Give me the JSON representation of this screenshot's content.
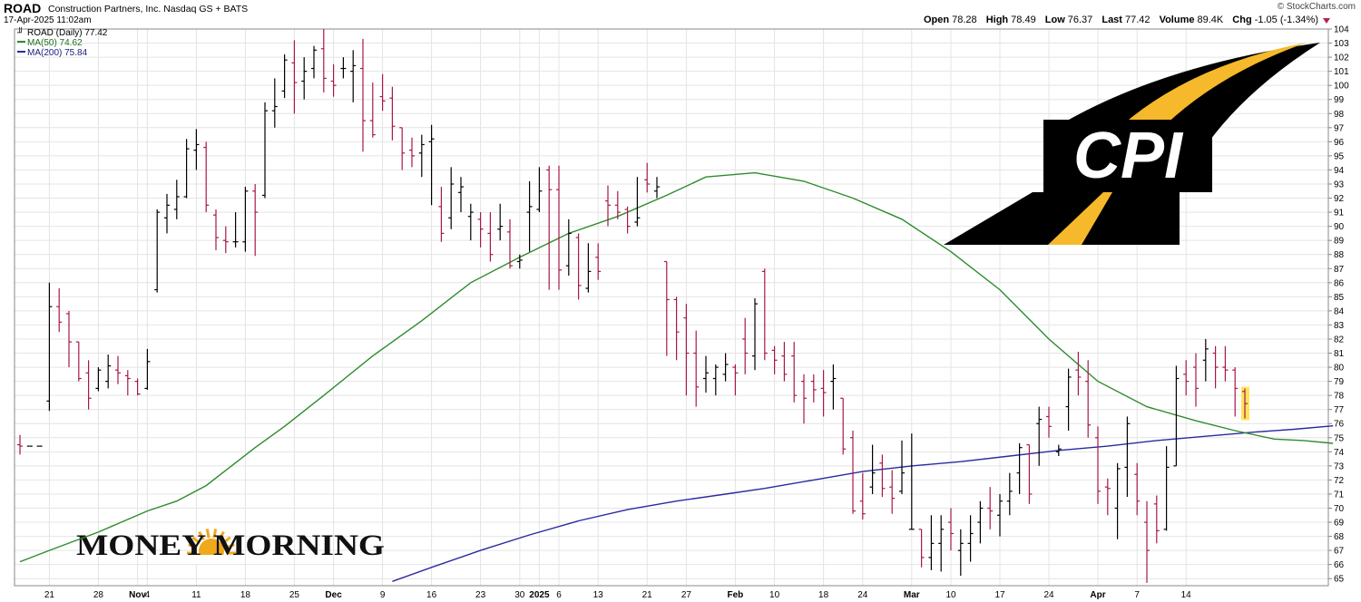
{
  "header": {
    "symbol": "ROAD",
    "company": "Construction Partners, Inc.  Nasdaq GS + BATS",
    "datetime": "17-Apr-2025 11:02am",
    "copyright": "© StockCharts.com",
    "open_label": "Open",
    "open": "78.28",
    "high_label": "High",
    "high": "78.49",
    "low_label": "Low",
    "low": "76.37",
    "last_label": "Last",
    "last": "77.42",
    "volume_label": "Volume",
    "volume": "89.4K",
    "chg_label": "Chg",
    "chg": "-1.05 (-1.34%)"
  },
  "legend": {
    "main": "ROAD (Daily) 77.42",
    "ma50": "MA(50) 74.62",
    "ma200": "MA(200) 75.84"
  },
  "watermark": {
    "money_morning": "MONEY MORNING",
    "cpi": "CPI"
  },
  "colors": {
    "up": "#000000",
    "down": "#a8184a",
    "ma50": "#2e8b2e",
    "ma200": "#2a2aa0",
    "grid": "#e4e4e4",
    "highlight": "#ffe45c"
  },
  "chart_data": {
    "type": "ohlc",
    "ylim": [
      64.5,
      104
    ],
    "y_ticks": [
      65,
      66,
      67,
      68,
      69,
      70,
      71,
      72,
      73,
      74,
      75,
      76,
      77,
      78,
      79,
      80,
      81,
      82,
      83,
      84,
      85,
      86,
      87,
      88,
      89,
      90,
      91,
      92,
      93,
      94,
      95,
      96,
      97,
      98,
      99,
      100,
      101,
      102,
      103,
      104
    ],
    "x_ticks": [
      {
        "i": 3,
        "label": "21"
      },
      {
        "i": 8,
        "label": "28"
      },
      {
        "i": 12,
        "label": "Nov"
      },
      {
        "i": 13,
        "label": "4"
      },
      {
        "i": 18,
        "label": "11"
      },
      {
        "i": 23,
        "label": "18"
      },
      {
        "i": 28,
        "label": "25"
      },
      {
        "i": 32,
        "label": "Dec"
      },
      {
        "i": 37,
        "label": "9"
      },
      {
        "i": 42,
        "label": "16"
      },
      {
        "i": 47,
        "label": "23"
      },
      {
        "i": 51,
        "label": "30"
      },
      {
        "i": 53,
        "label": "2025"
      },
      {
        "i": 55,
        "label": "6"
      },
      {
        "i": 59,
        "label": "13"
      },
      {
        "i": 64,
        "label": "21"
      },
      {
        "i": 68,
        "label": "27"
      },
      {
        "i": 73,
        "label": "Feb"
      },
      {
        "i": 77,
        "label": "10"
      },
      {
        "i": 82,
        "label": "18"
      },
      {
        "i": 86,
        "label": "24"
      },
      {
        "i": 91,
        "label": "Mar"
      },
      {
        "i": 95,
        "label": "10"
      },
      {
        "i": 100,
        "label": "17"
      },
      {
        "i": 105,
        "label": "24"
      },
      {
        "i": 110,
        "label": "Apr"
      },
      {
        "i": 114,
        "label": "7"
      },
      {
        "i": 119,
        "label": "14"
      }
    ],
    "ohlc": [
      [
        74.5,
        75.2,
        73.8,
        74.4
      ],
      [
        74.4,
        74.4,
        74.4,
        74.4
      ],
      [
        74.4,
        74.4,
        74.4,
        74.4
      ],
      [
        77.6,
        86.0,
        76.9,
        84.3
      ],
      [
        84.3,
        85.6,
        82.5,
        83.2
      ],
      [
        83.8,
        84.0,
        80.0,
        81.8
      ],
      [
        81.8,
        81.8,
        79.0,
        79.2
      ],
      [
        79.6,
        80.5,
        77.0,
        77.8
      ],
      [
        78.5,
        80.0,
        78.3,
        79.8
      ],
      [
        79.0,
        80.9,
        78.5,
        80.1
      ],
      [
        79.8,
        80.8,
        78.8,
        79.6
      ],
      [
        79.4,
        79.8,
        78.0,
        79.2
      ],
      [
        79.0,
        79.2,
        78.0,
        78.1
      ],
      [
        78.5,
        81.3,
        78.4,
        80.4
      ],
      [
        85.5,
        91.2,
        85.3,
        91.0
      ],
      [
        90.6,
        92.3,
        89.5,
        91.5
      ],
      [
        91.2,
        93.3,
        90.5,
        92.1
      ],
      [
        92.1,
        96.2,
        92.0,
        95.5
      ],
      [
        95.4,
        96.9,
        94.0,
        95.8
      ],
      [
        95.6,
        96.0,
        91.0,
        91.5
      ],
      [
        90.8,
        91.2,
        88.3,
        89.2
      ],
      [
        89.0,
        90.0,
        88.1,
        88.9
      ],
      [
        88.9,
        91.0,
        88.5,
        88.9
      ],
      [
        88.9,
        92.8,
        88.2,
        92.5
      ],
      [
        92.5,
        93.0,
        87.9,
        91.0
      ],
      [
        92.2,
        98.8,
        92.0,
        98.2
      ],
      [
        98.2,
        100.5,
        97.0,
        98.5
      ],
      [
        99.6,
        102.2,
        99.1,
        101.8
      ],
      [
        101.6,
        103.2,
        98.0,
        100.2
      ],
      [
        100.3,
        102.0,
        99.0,
        101.0
      ],
      [
        101.2,
        102.8,
        100.5,
        102.5
      ],
      [
        102.6,
        104.0,
        99.5,
        100.5
      ],
      [
        100.3,
        101.5,
        99.2,
        100.0
      ],
      [
        101.2,
        102.0,
        100.5,
        101.2
      ],
      [
        101.0,
        102.5,
        98.8,
        101.4
      ],
      [
        101.2,
        103.3,
        95.3,
        97.5
      ],
      [
        97.5,
        100.2,
        96.3,
        96.5
      ],
      [
        99.2,
        100.8,
        98.2,
        98.9
      ],
      [
        99.1,
        99.9,
        96.1,
        97.1
      ],
      [
        97.0,
        97.0,
        94.0,
        95.2
      ],
      [
        95.4,
        96.3,
        94.2,
        95.0
      ],
      [
        95.2,
        96.5,
        93.5,
        95.8
      ],
      [
        96.0,
        97.2,
        91.5,
        96.2
      ],
      [
        91.4,
        92.8,
        88.9,
        89.5
      ],
      [
        90.6,
        94.2,
        89.8,
        93.0
      ],
      [
        92.4,
        93.5,
        91.0,
        92.8
      ],
      [
        90.7,
        91.6,
        89.0,
        91.0
      ],
      [
        90.5,
        91.0,
        88.5,
        89.8
      ],
      [
        89.5,
        91.0,
        87.5,
        88.0
      ],
      [
        89.8,
        91.6,
        89.0,
        90.0
      ],
      [
        89.6,
        90.5,
        87.0,
        87.2
      ],
      [
        87.5,
        88.0,
        87.0,
        87.6
      ],
      [
        91.0,
        93.2,
        88.2,
        91.4
      ],
      [
        91.2,
        94.2,
        91.0,
        92.5
      ],
      [
        94.0,
        94.3,
        85.5,
        92.6
      ],
      [
        92.6,
        94.3,
        85.5,
        86.9
      ],
      [
        87.2,
        90.5,
        86.5,
        89.5
      ],
      [
        89.2,
        89.5,
        84.8,
        85.8
      ],
      [
        85.6,
        88.8,
        85.3,
        86.8
      ],
      [
        87.8,
        88.8,
        86.2,
        86.8
      ],
      [
        91.8,
        92.9,
        90.0,
        91.5
      ],
      [
        91.5,
        92.5,
        90.5,
        91.0
      ],
      [
        91.2,
        91.4,
        89.5,
        90.0
      ],
      [
        90.3,
        93.5,
        90.0,
        90.6
      ],
      [
        93.3,
        94.5,
        92.4,
        93.0
      ],
      [
        92.5,
        93.5,
        92.0,
        92.8
      ],
      [
        87.5,
        87.5,
        80.8,
        84.8
      ],
      [
        84.8,
        85.0,
        80.5,
        82.5
      ],
      [
        83.5,
        84.5,
        78.0,
        81.0
      ],
      [
        81.0,
        82.6,
        77.2,
        78.6
      ],
      [
        79.2,
        80.8,
        78.2,
        79.6
      ],
      [
        79.2,
        80.2,
        78.0,
        80.0
      ],
      [
        79.5,
        81.0,
        79.0,
        80.2
      ],
      [
        80.0,
        80.2,
        78.0,
        79.6
      ],
      [
        82.0,
        83.5,
        79.5,
        81.0
      ],
      [
        80.8,
        84.9,
        79.8,
        84.5
      ],
      [
        86.8,
        87.0,
        80.5,
        81.0
      ],
      [
        81.2,
        81.5,
        79.5,
        80.5
      ],
      [
        80.8,
        81.8,
        79.0,
        79.5
      ],
      [
        80.8,
        81.8,
        77.5,
        78.0
      ],
      [
        79.0,
        79.5,
        76.0,
        77.8
      ],
      [
        79.0,
        79.5,
        77.5,
        78.4
      ],
      [
        78.5,
        79.8,
        76.5,
        78.2
      ],
      [
        79.0,
        80.2,
        77.0,
        79.2
      ],
      [
        77.8,
        77.8,
        73.8,
        74.2
      ],
      [
        75.0,
        75.5,
        69.6,
        69.8
      ],
      [
        70.5,
        72.5,
        69.2,
        69.6
      ],
      [
        71.5,
        74.5,
        71.0,
        72.5
      ],
      [
        73.2,
        73.8,
        70.8,
        71.4
      ],
      [
        71.5,
        72.7,
        69.6,
        70.7
      ],
      [
        71.2,
        74.8,
        71.0,
        72.5
      ],
      [
        68.5,
        75.3,
        68.5,
        68.5
      ],
      [
        68.5,
        68.5,
        65.8,
        66.5
      ],
      [
        66.5,
        69.5,
        65.6,
        67.5
      ],
      [
        67.5,
        69.5,
        65.5,
        68.5
      ],
      [
        69.0,
        70.0,
        67.0,
        68.2
      ],
      [
        67.0,
        68.5,
        65.2,
        67.5
      ],
      [
        67.5,
        69.5,
        66.2,
        68.2
      ],
      [
        69.0,
        70.5,
        67.5,
        70.0
      ],
      [
        70.0,
        71.5,
        68.5,
        69.8
      ],
      [
        69.5,
        71.0,
        68.0,
        70.5
      ],
      [
        70.5,
        72.5,
        69.5,
        71.2
      ],
      [
        72.5,
        74.6,
        71.0,
        74.3
      ],
      [
        74.5,
        74.5,
        70.3,
        71.0
      ],
      [
        76.0,
        77.2,
        73.0,
        76.3
      ],
      [
        76.5,
        77.2,
        75.0,
        75.8
      ],
      [
        74.0,
        74.5,
        73.7,
        74.2
      ],
      [
        77.2,
        79.9,
        75.5,
        79.3
      ],
      [
        79.8,
        81.1,
        78.0,
        79.3
      ],
      [
        79.0,
        80.5,
        75.0,
        75.9
      ],
      [
        75.0,
        75.8,
        70.3,
        71.2
      ],
      [
        71.5,
        72.1,
        69.5,
        71.4
      ],
      [
        70.0,
        73.2,
        67.8,
        72.8
      ],
      [
        72.9,
        76.5,
        70.8,
        76.0
      ],
      [
        72.4,
        73.2,
        69.5,
        70.5
      ],
      [
        69.0,
        70.5,
        64.7,
        67.0
      ],
      [
        70.3,
        70.9,
        67.5,
        68.4
      ],
      [
        68.5,
        74.4,
        68.4,
        72.9
      ],
      [
        73.0,
        80.1,
        73.0,
        79.2
      ],
      [
        79.5,
        80.5,
        78.0,
        79.0
      ],
      [
        80.0,
        81.0,
        77.2,
        78.5
      ],
      [
        80.5,
        82.0,
        79.0,
        81.3
      ],
      [
        81.0,
        81.5,
        78.5,
        80.0
      ],
      [
        80.0,
        81.5,
        79.0,
        79.8
      ],
      [
        79.8,
        80.0,
        76.5,
        78.5
      ],
      [
        78.28,
        78.49,
        76.37,
        77.42
      ]
    ],
    "ma50": [
      [
        0,
        66.2
      ],
      [
        3,
        67.0
      ],
      [
        8,
        68.3
      ],
      [
        13,
        69.8
      ],
      [
        16,
        70.5
      ],
      [
        19,
        71.6
      ],
      [
        24,
        74.3
      ],
      [
        27,
        75.8
      ],
      [
        31,
        78.0
      ],
      [
        36,
        80.8
      ],
      [
        41,
        83.3
      ],
      [
        46,
        86.0
      ],
      [
        51,
        87.8
      ],
      [
        56,
        89.5
      ],
      [
        61,
        90.7
      ],
      [
        66,
        92.2
      ],
      [
        70,
        93.5
      ],
      [
        75,
        93.8
      ],
      [
        80,
        93.2
      ],
      [
        85,
        92.0
      ],
      [
        90,
        90.5
      ],
      [
        95,
        88.2
      ],
      [
        100,
        85.5
      ],
      [
        105,
        82.0
      ],
      [
        110,
        79.0
      ],
      [
        115,
        77.2
      ],
      [
        120,
        76.2
      ],
      [
        124,
        75.5
      ],
      [
        128,
        74.9
      ],
      [
        131,
        74.8
      ],
      [
        134,
        74.6
      ]
    ],
    "ma200": [
      [
        38,
        64.8
      ],
      [
        42,
        65.8
      ],
      [
        47,
        67.0
      ],
      [
        52,
        68.1
      ],
      [
        57,
        69.1
      ],
      [
        62,
        69.9
      ],
      [
        67,
        70.5
      ],
      [
        72,
        71.0
      ],
      [
        76,
        71.4
      ],
      [
        81,
        72.0
      ],
      [
        86,
        72.6
      ],
      [
        91,
        73.0
      ],
      [
        96,
        73.3
      ],
      [
        101,
        73.7
      ],
      [
        106,
        74.1
      ],
      [
        111,
        74.4
      ],
      [
        116,
        74.8
      ],
      [
        121,
        75.1
      ],
      [
        126,
        75.4
      ],
      [
        130,
        75.6
      ],
      [
        134,
        75.84
      ]
    ]
  }
}
